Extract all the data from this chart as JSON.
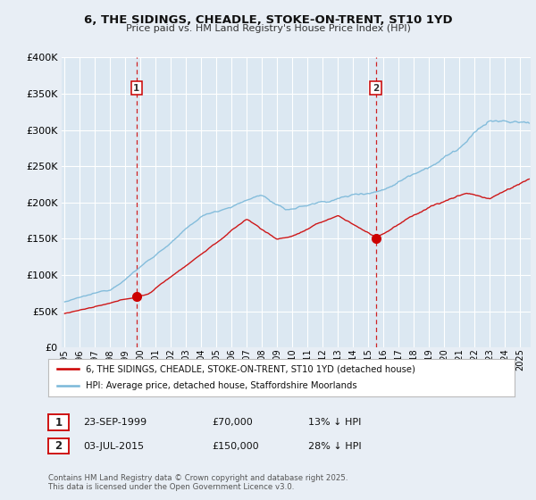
{
  "title": "6, THE SIDINGS, CHEADLE, STOKE-ON-TRENT, ST10 1YD",
  "subtitle": "Price paid vs. HM Land Registry's House Price Index (HPI)",
  "legend_line1": "6, THE SIDINGS, CHEADLE, STOKE-ON-TRENT, ST10 1YD (detached house)",
  "legend_line2": "HPI: Average price, detached house, Staffordshire Moorlands",
  "annotation1_date": "23-SEP-1999",
  "annotation1_price": "£70,000",
  "annotation1_hpi": "13% ↓ HPI",
  "annotation2_date": "03-JUL-2015",
  "annotation2_price": "£150,000",
  "annotation2_hpi": "28% ↓ HPI",
  "footer": "Contains HM Land Registry data © Crown copyright and database right 2025.\nThis data is licensed under the Open Government Licence v3.0.",
  "hpi_color": "#7ab8d9",
  "price_color": "#cc0000",
  "vline_color": "#cc0000",
  "bg_color": "#e8eef5",
  "plot_bg_color": "#dce8f2",
  "grid_color": "#ffffff",
  "ylim": [
    0,
    400000
  ],
  "yticks": [
    0,
    50000,
    100000,
    150000,
    200000,
    250000,
    300000,
    350000,
    400000
  ],
  "sale1_year": 1999.73,
  "sale1_value": 70000,
  "sale2_year": 2015.5,
  "sale2_value": 150000,
  "xmin": 1994.8,
  "xmax": 2025.7
}
